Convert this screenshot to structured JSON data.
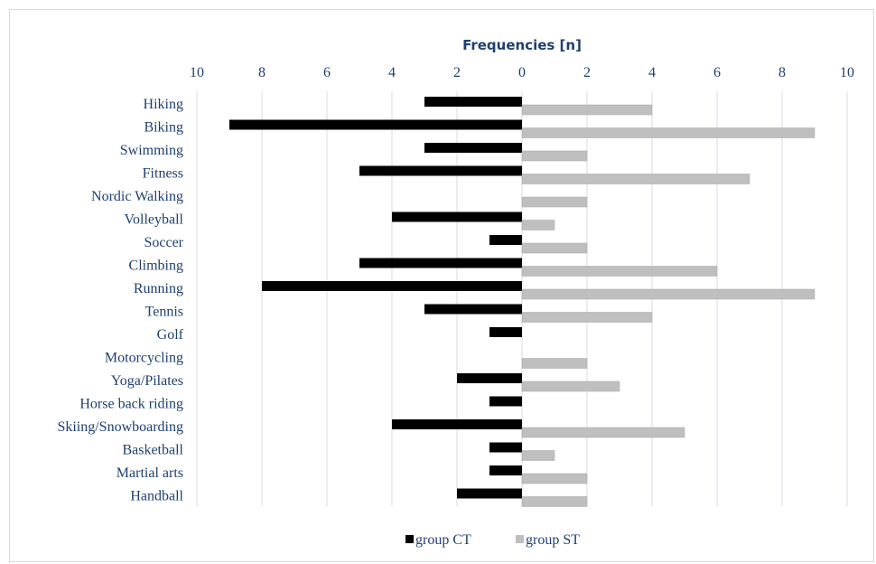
{
  "chart_data": {
    "type": "bar",
    "orientation": "horizontal-butterfly",
    "xlabel": "Frequencies [n]",
    "xlim": [
      -10,
      10
    ],
    "xticks": [
      10,
      8,
      6,
      4,
      2,
      0,
      2,
      4,
      6,
      8,
      10
    ],
    "grid": true,
    "legend_position": "bottom",
    "categories": [
      "Hiking",
      "Biking",
      "Swimming",
      "Fitness",
      "Nordic Walking",
      "Volleyball",
      "Soccer",
      "Climbing",
      "Running",
      "Tennis",
      "Golf",
      "Motorcycling",
      "Yoga/Pilates ",
      "Horse back riding",
      "Skiing/Snowboarding",
      "Basketball",
      "Martial arts ",
      "Handball"
    ],
    "series": [
      {
        "name": "group CT",
        "color": "#000000",
        "side": "left",
        "values": [
          3,
          9,
          3,
          5,
          0,
          4,
          1,
          5,
          8,
          3,
          1,
          0,
          2,
          1,
          4,
          1,
          1,
          2
        ]
      },
      {
        "name": "group ST",
        "color": "#bfbfbf",
        "side": "right",
        "values": [
          4,
          9,
          2,
          7,
          2,
          1,
          2,
          6,
          9,
          4,
          0,
          2,
          3,
          0,
          5,
          1,
          2,
          2
        ]
      }
    ]
  }
}
